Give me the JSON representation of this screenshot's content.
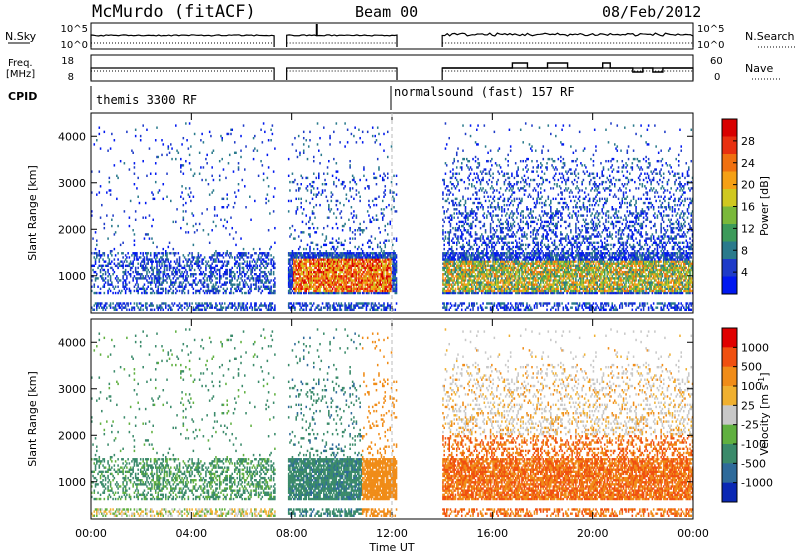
{
  "header": {
    "station": "McMurdo (fitACF)",
    "beam": "Beam 00",
    "date": "08/Feb/2012"
  },
  "noise_panel": {
    "left_label": "N.Sky",
    "left_ticks": [
      "10^5",
      "10^0"
    ],
    "right_ticks": [
      "10^5",
      "10^0"
    ],
    "right_label": "N.Search"
  },
  "freq_panel": {
    "left_label_1": "Freq.",
    "left_label_2": "[MHz]",
    "left_ticks": [
      "18",
      "8"
    ],
    "right_ticks": [
      "60",
      "0"
    ],
    "right_label": "Nave"
  },
  "cpid": {
    "label": "CPID",
    "segments": [
      {
        "text": "themis 3300 RF",
        "start_hour": 0
      },
      {
        "text": "normalsound (fast) 157 RF",
        "start_hour": 12
      }
    ]
  },
  "chart_data": [
    {
      "type": "heatmap",
      "name": "power",
      "ylabel": "Slant Range [km]",
      "xlim": [
        0,
        24
      ],
      "ylim": [
        200,
        4500
      ],
      "y_ticks": [
        1000,
        2000,
        3000,
        4000
      ],
      "data_gaps_hours": [
        [
          7.3,
          7.8
        ],
        [
          12.2,
          14.0
        ]
      ],
      "colorbar": {
        "label": "Power [dB]",
        "range": [
          0,
          32
        ],
        "ticks": [
          "28",
          "24",
          "20",
          "16",
          "12",
          "8",
          "4"
        ],
        "colors": [
          "#0018f0",
          "#1e3bc8",
          "#2a7a8c",
          "#3c9a5a",
          "#7ab83a",
          "#d0c820",
          "#f5a014",
          "#f07010",
          "#e83010",
          "#d80000"
        ]
      }
    },
    {
      "type": "heatmap",
      "name": "velocity",
      "ylabel": "Slant Range [km]",
      "xlim": [
        0,
        24
      ],
      "ylim": [
        200,
        4500
      ],
      "y_ticks": [
        1000,
        2000,
        3000,
        4000
      ],
      "data_gaps_hours": [
        [
          7.3,
          7.8
        ],
        [
          12.2,
          14.0
        ]
      ],
      "colorbar": {
        "label": "Velocity [m s",
        "label_sup": "-1",
        "label_end": "]",
        "ticks": [
          "1000",
          "500",
          "100",
          "25",
          "-25",
          "-100",
          "-500",
          "-1000"
        ],
        "colors": [
          "#0a28b4",
          "#2e6a9a",
          "#3a8a6a",
          "#60b040",
          "#c8c8c8",
          "#f0b030",
          "#f08c18",
          "#f05010",
          "#e00000"
        ]
      }
    }
  ],
  "x_axis": {
    "ticks": [
      "00:00",
      "04:00",
      "08:00",
      "12:00",
      "16:00",
      "20:00",
      "00:00"
    ],
    "label": "Time UT"
  }
}
